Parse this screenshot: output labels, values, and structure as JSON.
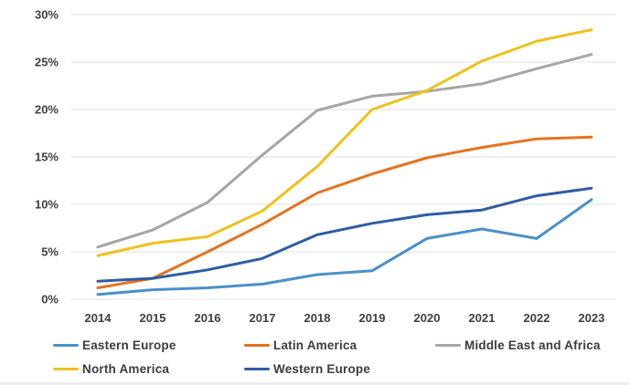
{
  "chart_data": {
    "type": "line",
    "title": "",
    "xlabel": "",
    "ylabel": "",
    "value_format": "percent",
    "ylim": [
      0,
      30
    ],
    "ytick_step": 5,
    "ytick_labels": [
      "0%",
      "5%",
      "10%",
      "15%",
      "20%",
      "25%",
      "30%"
    ],
    "categories": [
      "2014",
      "2015",
      "2016",
      "2017",
      "2018",
      "2019",
      "2020",
      "2021",
      "2022",
      "2023"
    ],
    "grid": "horizontal",
    "legend_position": "bottom",
    "series": [
      {
        "name": "Eastern Europe",
        "color": "#4a90c9",
        "values": [
          0.5,
          1.0,
          1.2,
          1.6,
          2.6,
          3.0,
          6.4,
          7.4,
          6.4,
          10.5
        ]
      },
      {
        "name": "Latin America",
        "color": "#e5731f",
        "values": [
          1.2,
          2.2,
          5.0,
          7.9,
          11.2,
          13.2,
          14.9,
          16.0,
          16.9,
          17.1
        ]
      },
      {
        "name": "Middle East and Africa",
        "color": "#a6a6a6",
        "values": [
          5.5,
          7.3,
          10.2,
          15.2,
          19.9,
          21.4,
          21.9,
          22.7,
          24.3,
          25.8
        ]
      },
      {
        "name": "North America",
        "color": "#eec21c",
        "values": [
          4.6,
          5.9,
          6.6,
          9.3,
          14.0,
          20.0,
          22.0,
          25.1,
          27.2,
          28.4
        ]
      },
      {
        "name": "Western Europe",
        "color": "#2f5da4",
        "values": [
          1.9,
          2.2,
          3.1,
          4.3,
          6.8,
          8.0,
          8.9,
          9.4,
          10.9,
          11.7
        ]
      }
    ]
  },
  "colors": {
    "axis_text": "#3f3f3f",
    "gridline": "#e2e2e2",
    "background": "#ffffff"
  }
}
